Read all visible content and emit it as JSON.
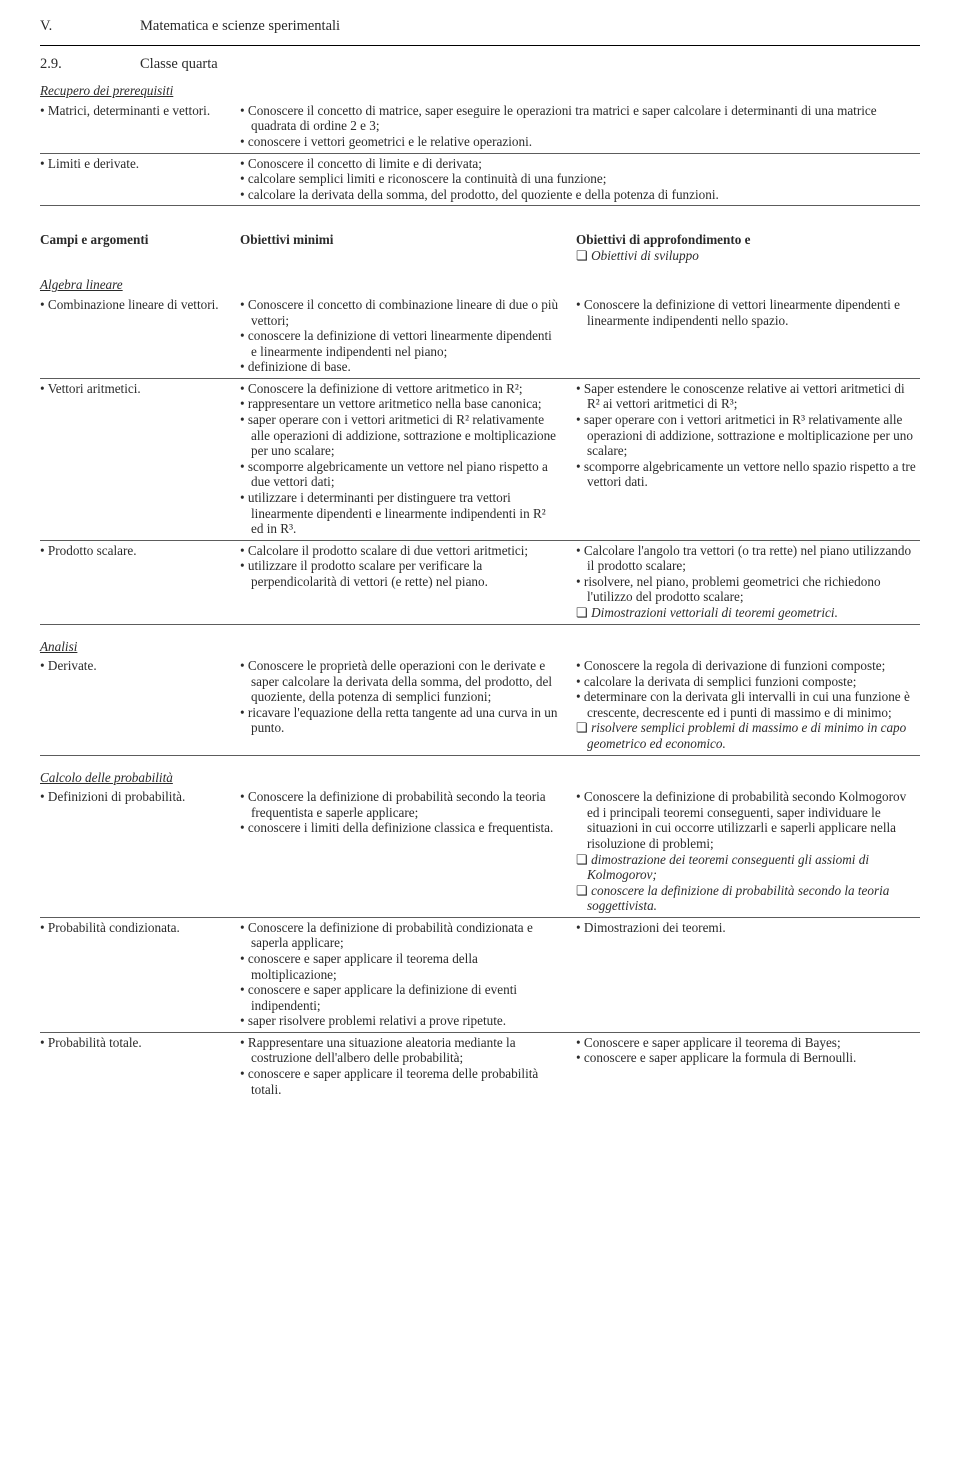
{
  "header": {
    "chapter_num": "V.",
    "chapter_title": "Matematica e scienze sperimentali",
    "section_num": "2.9.",
    "section_title": "Classe quarta"
  },
  "prereq": {
    "title": "Recupero dei prerequisiti",
    "rows": [
      {
        "left": [
          "Matrici, determinanti e vettori."
        ],
        "right": [
          "Conoscere il concetto di matrice, saper eseguire le operazioni tra matrici e saper calcolare i determinanti di una matrice quadrata di ordine 2 e 3;",
          "conoscere i vettori geometrici e le relative operazioni."
        ]
      },
      {
        "left": [
          "Limiti e derivate."
        ],
        "right": [
          "Conoscere il concetto di limite e di derivata;",
          "calcolare semplici limiti e riconoscere la continuità di una funzione;",
          "calcolare la derivata della somma, del prodotto, del quoziente e della potenza di funzioni."
        ]
      }
    ]
  },
  "table_header": {
    "c1": "Campi e argomenti",
    "c2": "Obiettivi minimi",
    "c3": "Obiettivi di approfondimento e",
    "c3sub": "Obiettivi di sviluppo"
  },
  "blocks": [
    {
      "title": "Algebra lineare",
      "rows": [
        {
          "left": [
            "Combinazione lineare di vettori."
          ],
          "mid": [
            {
              "t": "Conoscere il concetto di combinazione lineare di due o più vettori;"
            },
            {
              "t": "conoscere la definizione di vettori linearmente dipendenti e linearmente indipendenti nel piano;"
            },
            {
              "t": "definizione di base."
            }
          ],
          "right": [
            {
              "t": "Conoscere la definizione di vettori linearmente dipendenti e linearmente indipendenti nello spazio."
            }
          ]
        },
        {
          "left": [
            "Vettori aritmetici."
          ],
          "mid": [
            {
              "t": "Conoscere la definizione di vettore aritmetico in R²;"
            },
            {
              "t": "rappresentare un vettore aritmetico nella base canonica;"
            },
            {
              "t": "saper operare con i vettori aritmetici di R² relativamente alle operazioni di addizione, sottrazione e moltiplicazione per uno scalare;"
            },
            {
              "t": "scomporre algebricamente un vettore nel piano rispetto a due vettori dati;"
            },
            {
              "t": "utilizzare i determinanti per distinguere tra vettori linearmente dipendenti e linearmente indipendenti in R² ed in R³."
            }
          ],
          "right": [
            {
              "t": "Saper estendere le conoscenze relative ai vettori aritmetici di R² ai vettori aritmetici di R³;"
            },
            {
              "t": "saper operare con i vettori aritmetici in R³ relativamente alle operazioni di addizione, sottrazione e moltiplicazione per uno scalare;"
            },
            {
              "t": "scomporre algebricamente un vettore nello spazio rispetto a tre vettori dati."
            }
          ]
        },
        {
          "left": [
            "Prodotto scalare."
          ],
          "mid": [
            {
              "t": "Calcolare il prodotto scalare di due vettori aritmetici;"
            },
            {
              "t": "utilizzare il prodotto scalare per verificare la perpendicolarità di vettori (e rette) nel piano."
            }
          ],
          "right": [
            {
              "t": "Calcolare l'angolo tra vettori (o tra rette) nel piano utilizzando il prodotto scalare;"
            },
            {
              "t": "risolvere, nel piano, problemi geometrici che richiedono l'utilizzo del prodotto scalare;"
            },
            {
              "t": "Dimostrazioni vettoriali di teoremi geometrici.",
              "sq": true
            }
          ]
        }
      ]
    },
    {
      "title": "Analisi",
      "rows": [
        {
          "left": [
            "Derivate."
          ],
          "mid": [
            {
              "t": "Conoscere le proprietà delle operazioni con le derivate e saper calcolare la derivata della somma, del prodotto, del quoziente, della potenza di semplici funzioni;"
            },
            {
              "t": "ricavare l'equazione della retta tangente ad una curva in un punto."
            }
          ],
          "right": [
            {
              "t": "Conoscere la regola di derivazione di funzioni composte;"
            },
            {
              "t": "calcolare la derivata di semplici funzioni composte;"
            },
            {
              "t": "determinare con la derivata gli intervalli in cui una funzione è crescente, decrescente ed i punti di massimo e di minimo;"
            },
            {
              "t": "risolvere semplici problemi di massimo e di minimo in capo geometrico ed economico.",
              "sq": true
            }
          ]
        }
      ]
    },
    {
      "title": "Calcolo delle probabilità",
      "rows": [
        {
          "left": [
            "Definizioni di probabilità."
          ],
          "mid": [
            {
              "t": "Conoscere la definizione di probabilità secondo la teoria frequentista e saperle applicare;"
            },
            {
              "t": "conoscere i limiti della definizione classica e frequentista."
            }
          ],
          "right": [
            {
              "t": "Conoscere la definizione di probabilità secondo Kolmogorov ed i principali teoremi conseguenti, saper individuare le situazioni in cui occorre utilizzarli e saperli applicare nella risoluzione di problemi;"
            },
            {
              "t": "dimostrazione dei teoremi conseguenti gli assiomi di Kolmogorov;",
              "sq": true
            },
            {
              "t": "conoscere la definizione di probabilità secondo la teoria soggettivista.",
              "sq": true
            }
          ]
        },
        {
          "left": [
            "Probabilità condizionata."
          ],
          "mid": [
            {
              "t": "Conoscere la definizione di probabilità condizionata e saperla applicare;"
            },
            {
              "t": "conoscere e saper applicare il teorema della moltiplicazione;"
            },
            {
              "t": "conoscere e saper applicare la definizione di eventi indipendenti;"
            },
            {
              "t": "saper risolvere problemi relativi a prove ripetute."
            }
          ],
          "right": [
            {
              "t": "Dimostrazioni dei teoremi."
            }
          ]
        },
        {
          "left": [
            "Probabilità totale."
          ],
          "mid": [
            {
              "t": "Rappresentare una situazione aleatoria mediante la costruzione dell'albero delle probabilità;"
            },
            {
              "t": "conoscere e saper applicare il teorema delle probabilità totali."
            }
          ],
          "right": [
            {
              "t": "Conoscere e saper applicare il teorema di Bayes;"
            },
            {
              "t": "conoscere e saper applicare la formula di Bernoulli."
            }
          ],
          "last": true
        }
      ]
    }
  ]
}
